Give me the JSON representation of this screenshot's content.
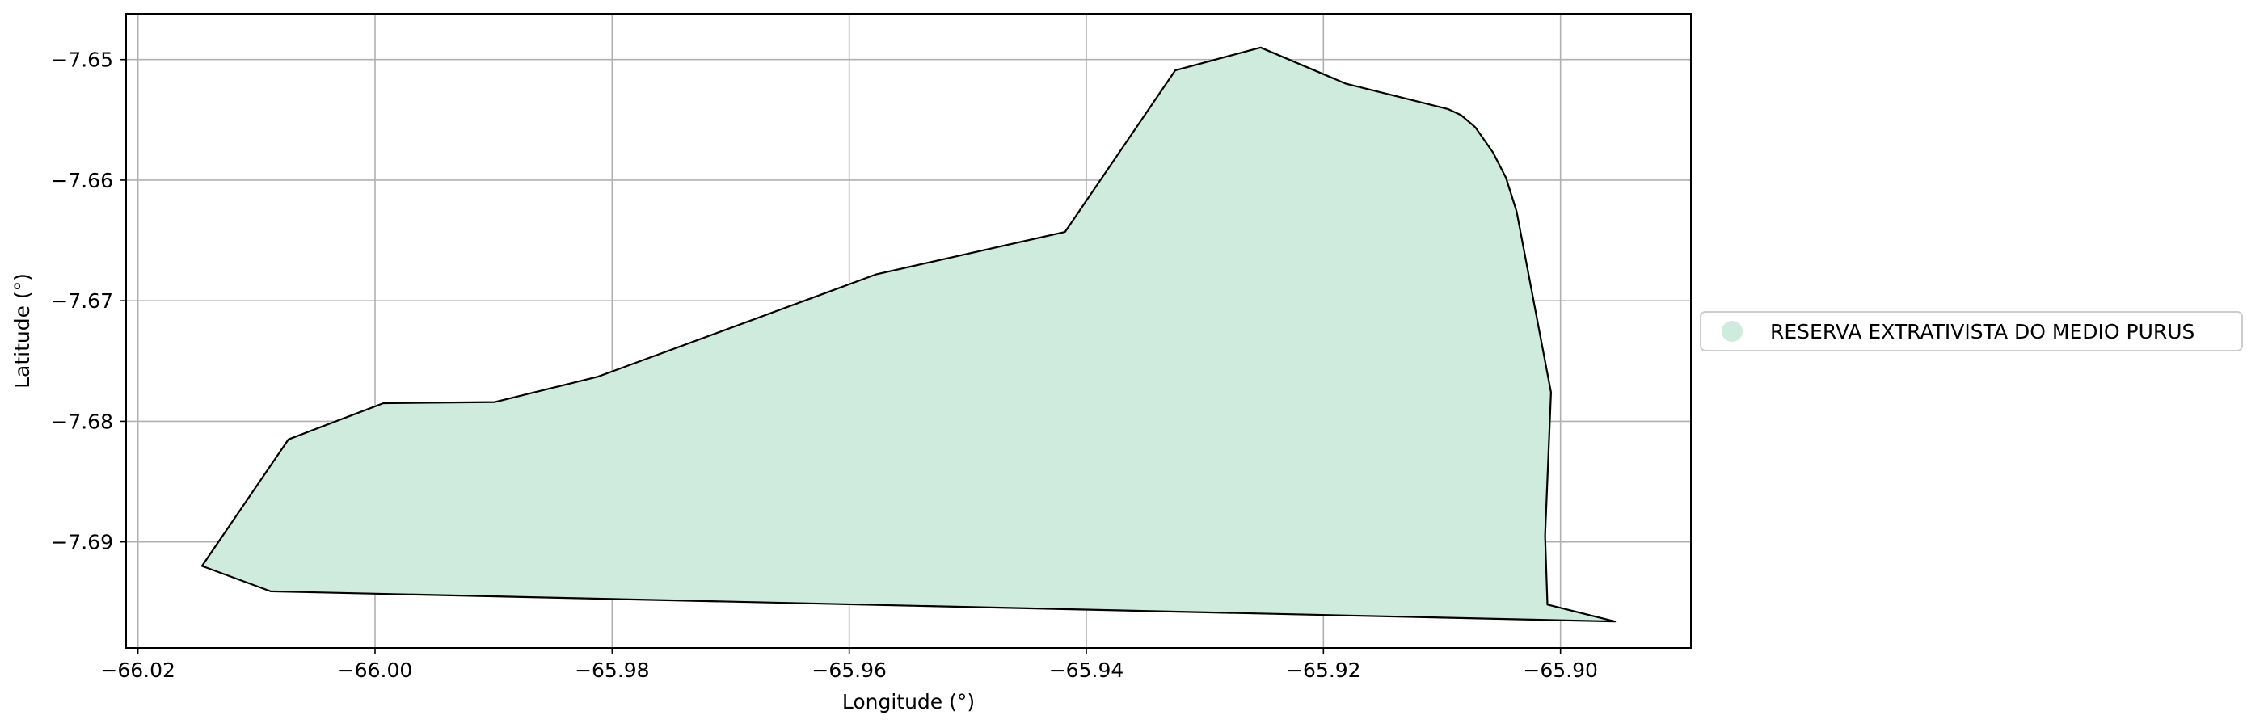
{
  "chart_data": {
    "type": "area",
    "xlabel": "Longitude (°)",
    "ylabel": "Latitude (°)",
    "xlim": [
      -66.021,
      -65.889
    ],
    "ylim": [
      -7.6988,
      -7.6462
    ],
    "y_inverted": false,
    "grid": true,
    "xticks": [
      -66.02,
      -66.0,
      -65.98,
      -65.96,
      -65.94,
      -65.92,
      -65.9
    ],
    "xtick_labels": [
      "−66.02",
      "−66.00",
      "−65.98",
      "−65.96",
      "−65.94",
      "−65.92",
      "−65.90"
    ],
    "yticks": [
      -7.65,
      -7.66,
      -7.67,
      -7.68,
      -7.69
    ],
    "ytick_labels": [
      "−7.65",
      "−7.66",
      "−7.67",
      "−7.68",
      "−7.69"
    ],
    "legend_position": "right",
    "series": [
      {
        "name": "RESERVA EXTRATIVISTA DO MEDIO PURUS",
        "fill": "#cfebdd",
        "stroke": "#000000",
        "polygon": [
          [
            -66.0146,
            -7.692
          ],
          [
            -66.0073,
            -7.6815
          ],
          [
            -65.9993,
            -7.6785
          ],
          [
            -65.9899,
            -7.6784
          ],
          [
            -65.9812,
            -7.6763
          ],
          [
            -65.9577,
            -7.6678
          ],
          [
            -65.9418,
            -7.6643
          ],
          [
            -65.9325,
            -7.6509
          ],
          [
            -65.9253,
            -7.649
          ],
          [
            -65.9181,
            -7.652
          ],
          [
            -65.9095,
            -7.6541
          ],
          [
            -65.9084,
            -7.6546
          ],
          [
            -65.9072,
            -7.6556
          ],
          [
            -65.9057,
            -7.6577
          ],
          [
            -65.9046,
            -7.6598
          ],
          [
            -65.9037,
            -7.6626
          ],
          [
            -65.9008,
            -7.6776
          ],
          [
            -65.9013,
            -7.6895
          ],
          [
            -65.9011,
            -7.6952
          ],
          [
            -65.8954,
            -7.6966
          ],
          [
            -66.0088,
            -7.6941
          ],
          [
            -66.0146,
            -7.692
          ]
        ]
      }
    ]
  }
}
